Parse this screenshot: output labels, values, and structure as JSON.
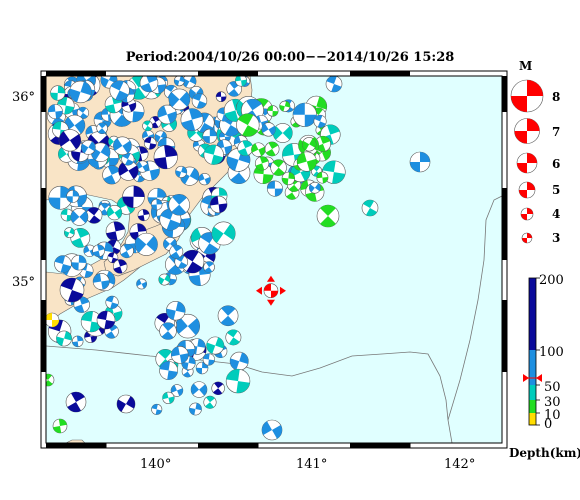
{
  "title": "Period:2004/10/26 00:00−−2014/10/26 15:28",
  "lat_labels": [
    "36°",
    "35°"
  ],
  "lon_labels": [
    "140°",
    "141°",
    "142°"
  ],
  "magnitude_legend": {
    "title": "M",
    "items": [
      "8",
      "7",
      "6",
      "5",
      "4",
      "3"
    ]
  },
  "depth_scale": {
    "title": "Depth(km)",
    "ticks": [
      "200",
      "100",
      "50",
      "30",
      "10",
      "0"
    ],
    "ticks_km": [
      200,
      100,
      50,
      30,
      10,
      0
    ]
  },
  "map_extent": {
    "lon": [
      139.3,
      142.3
    ],
    "lat": [
      34.1,
      36.1
    ]
  },
  "target_event": {
    "lon": 140.78,
    "lat": 34.93
  },
  "colors": {
    "ocean": "#e0ffff",
    "land": "#f9e4c6",
    "shallow": "#ffdd00",
    "depth_10_30": "#22dd22",
    "depth_30_50": "#00ccbb",
    "depth_50_100": "#1e8fe0",
    "deep": "#0a0a9a",
    "target": "#ff0000"
  }
}
